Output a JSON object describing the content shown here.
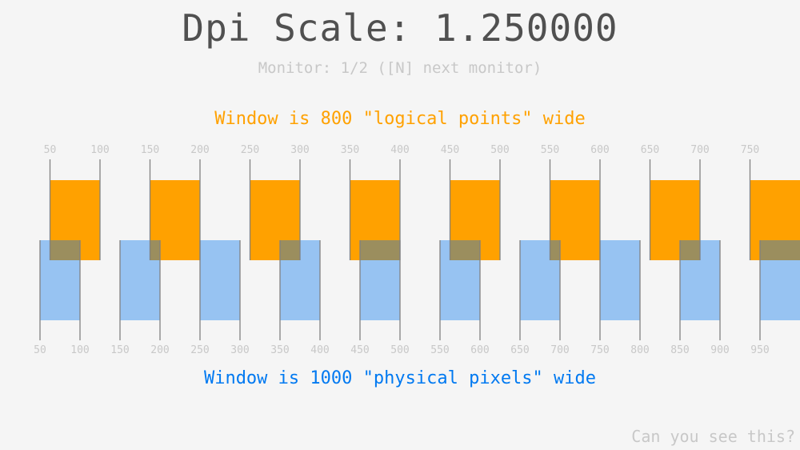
{
  "header": {
    "title": "Dpi Scale: 1.250000",
    "monitor_info": "Monitor: 1/2 ([N] next monitor)"
  },
  "logical": {
    "caption": "Window is 800 \"logical points\" wide",
    "color": "#ffa100",
    "window_width": 800,
    "dpi_scale": 1.25,
    "tick_labels": [
      "50",
      "100",
      "150",
      "200",
      "250",
      "300",
      "350",
      "400",
      "450",
      "500",
      "550",
      "600",
      "650",
      "700",
      "750"
    ]
  },
  "physical": {
    "caption": "Window is 1000 \"physical pixels\" wide",
    "color": "#97c3f2",
    "caption_color": "#0079f1",
    "window_width": 1000,
    "tick_labels": [
      "50",
      "100",
      "150",
      "200",
      "250",
      "300",
      "350",
      "400",
      "450",
      "500",
      "550",
      "600",
      "650",
      "700",
      "750",
      "800",
      "850",
      "900",
      "950"
    ]
  },
  "overlap_color": "#9b8e5e",
  "tick_line_color": "#808080",
  "footer": {
    "hidden_text": "Can you see this?"
  }
}
